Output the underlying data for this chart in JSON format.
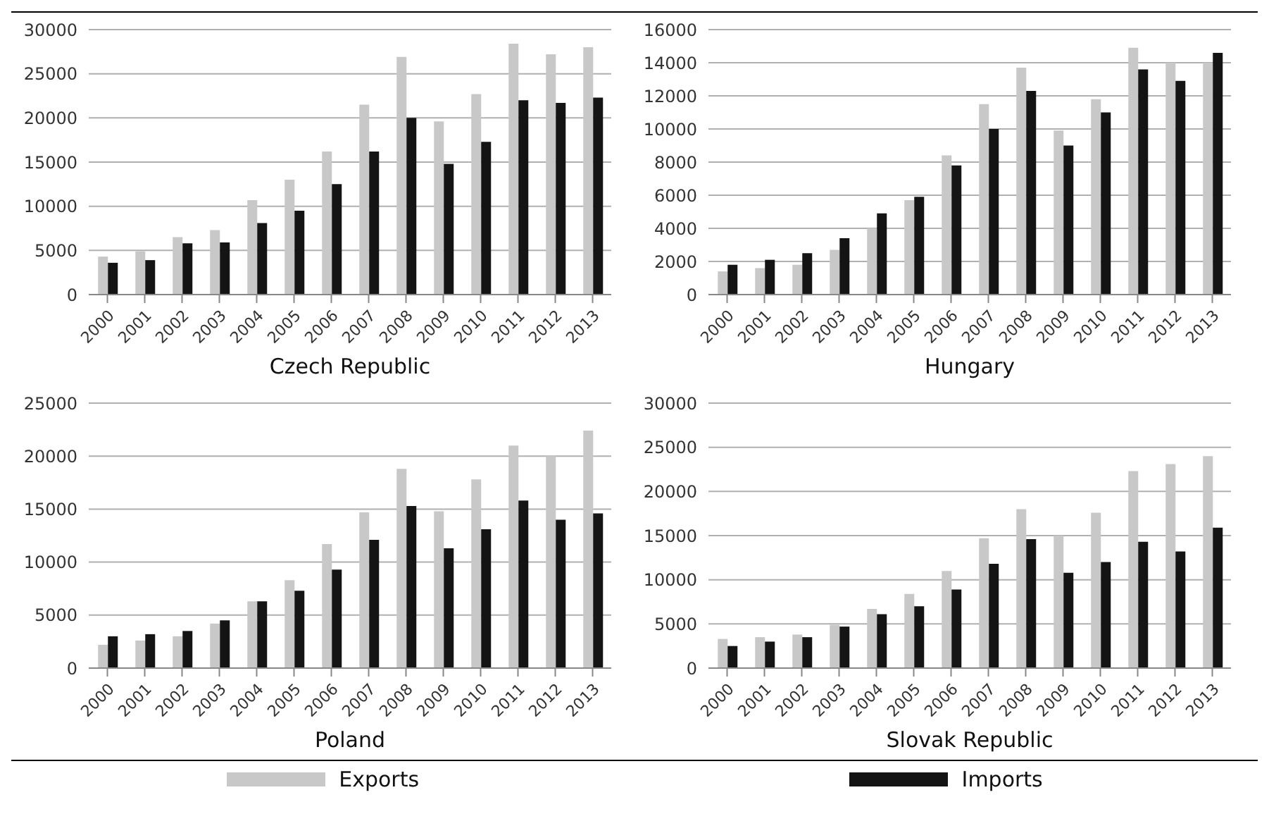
{
  "chart_data": [
    {
      "type": "bar",
      "xlabel": "Czech Republic",
      "categories": [
        "2000",
        "2001",
        "2002",
        "2003",
        "2004",
        "2005",
        "2006",
        "2007",
        "2008",
        "2009",
        "2010",
        "2011",
        "2012",
        "2013"
      ],
      "series": [
        {
          "color": "#c8c8c8",
          "values": [
            4300,
            4900,
            6500,
            7300,
            10700,
            13000,
            16200,
            21500,
            26900,
            19600,
            22700,
            28400,
            27200,
            28000
          ]
        },
        {
          "color": "#141414",
          "values": [
            3600,
            3900,
            5800,
            5900,
            8100,
            9500,
            12500,
            16200,
            20000,
            14800,
            17300,
            22000,
            21700,
            22300
          ]
        }
      ],
      "ylim": [
        0,
        30000
      ],
      "yticks": [
        0,
        5000,
        10000,
        15000,
        20000,
        25000,
        30000
      ],
      "grid": "y"
    },
    {
      "type": "bar",
      "xlabel": "Hungary",
      "categories": [
        "2000",
        "2001",
        "2002",
        "2003",
        "2004",
        "2005",
        "2006",
        "2007",
        "2008",
        "2009",
        "2010",
        "2011",
        "2012",
        "2013"
      ],
      "series": [
        {
          "color": "#c8c8c8",
          "values": [
            1400,
            1600,
            1800,
            2700,
            4000,
            5700,
            8400,
            11500,
            13700,
            9900,
            11800,
            14900,
            14000,
            14000
          ]
        },
        {
          "color": "#141414",
          "values": [
            1800,
            2100,
            2500,
            3400,
            4900,
            5900,
            7800,
            10000,
            12300,
            9000,
            11000,
            13600,
            12900,
            14600
          ]
        }
      ],
      "ylim": [
        0,
        16000
      ],
      "yticks": [
        0,
        2000,
        4000,
        6000,
        8000,
        10000,
        12000,
        14000,
        16000
      ],
      "grid": "y"
    },
    {
      "type": "bar",
      "xlabel": "Poland",
      "categories": [
        "2000",
        "2001",
        "2002",
        "2003",
        "2004",
        "2005",
        "2006",
        "2007",
        "2008",
        "2009",
        "2010",
        "2011",
        "2012",
        "2013"
      ],
      "series": [
        {
          "color": "#c8c8c8",
          "values": [
            2200,
            2600,
            3000,
            4200,
            6300,
            8300,
            11700,
            14700,
            18800,
            14800,
            17800,
            21000,
            20000,
            22400
          ]
        },
        {
          "color": "#141414",
          "values": [
            3000,
            3200,
            3500,
            4500,
            6300,
            7300,
            9300,
            12100,
            15300,
            11300,
            13100,
            15800,
            14000,
            14600
          ]
        }
      ],
      "ylim": [
        0,
        25000
      ],
      "yticks": [
        0,
        5000,
        10000,
        15000,
        20000,
        25000
      ],
      "grid": "y"
    },
    {
      "type": "bar",
      "xlabel": "Slovak Republic",
      "categories": [
        "2000",
        "2001",
        "2002",
        "2003",
        "2004",
        "2005",
        "2006",
        "2007",
        "2008",
        "2009",
        "2010",
        "2011",
        "2012",
        "2013"
      ],
      "series": [
        {
          "name": "Exports",
          "color": "#c8c8c8",
          "values": [
            3300,
            3500,
            3800,
            4900,
            6700,
            8400,
            11000,
            14700,
            18000,
            15000,
            17600,
            22300,
            23100,
            24000
          ]
        },
        {
          "name": "Imports",
          "color": "#141414",
          "values": [
            2500,
            3000,
            3500,
            4700,
            6100,
            7000,
            8900,
            11800,
            14600,
            10800,
            12000,
            14300,
            13200,
            15900
          ]
        }
      ],
      "ylim": [
        0,
        30000
      ],
      "yticks": [
        0,
        5000,
        10000,
        15000,
        20000,
        25000,
        30000
      ],
      "grid": "y",
      "legend": "bottom"
    }
  ]
}
